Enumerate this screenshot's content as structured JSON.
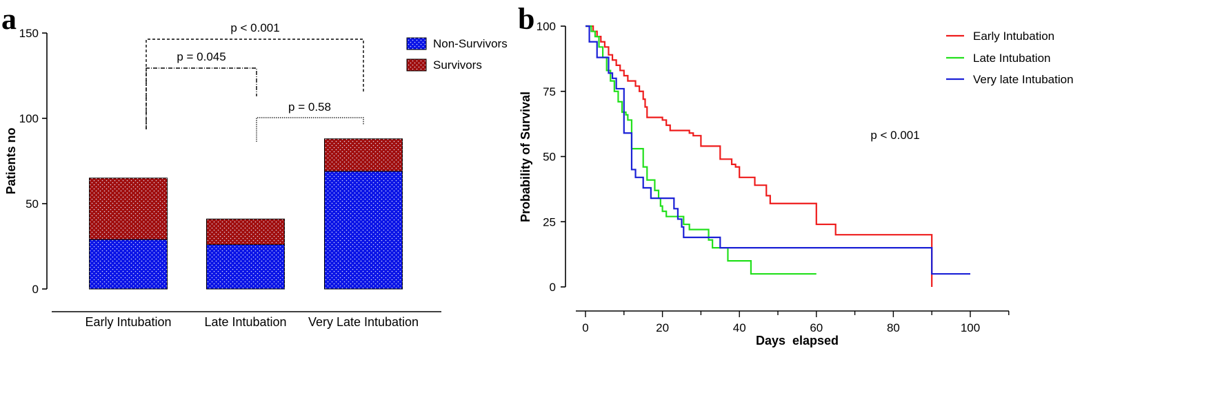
{
  "panels": {
    "a": "a",
    "b": "b"
  },
  "colors": {
    "non_survivors": "#0a14e6",
    "survivors": "#a00e0e",
    "early": "#ee1c1c",
    "late": "#22e01c",
    "very_late": "#1a20d6"
  },
  "chart_data": [
    {
      "type": "bar",
      "stacked": true,
      "title": "",
      "ylabel": "Patients no",
      "xlabel": "",
      "ylim": [
        0,
        150
      ],
      "yticks": [
        0,
        50,
        100,
        150
      ],
      "categories": [
        "Early Intubation",
        "Late Intubation",
        "Very Late Intubation"
      ],
      "series": [
        {
          "name": "Non-Survivors",
          "values": [
            29,
            26,
            69
          ]
        },
        {
          "name": "Survivors",
          "values": [
            36,
            15,
            19
          ]
        }
      ],
      "legend": "top-right",
      "annotations": [
        {
          "text": "p < 0.001",
          "from": "Early Intubation",
          "to": "Very Late Intubation"
        },
        {
          "text": "p = 0.045",
          "from": "Early Intubation",
          "to": "Late Intubation"
        },
        {
          "text": "p = 0.58",
          "from": "Late Intubation",
          "to": "Very Late Intubation"
        }
      ]
    },
    {
      "type": "line",
      "step": true,
      "title": "",
      "xlabel": "Days  elapsed",
      "ylabel": "Probability of Survival",
      "xlim": [
        0,
        110
      ],
      "ylim": [
        0,
        100
      ],
      "xticks": [
        0,
        20,
        40,
        60,
        80,
        100
      ],
      "yticks": [
        0,
        25,
        50,
        75,
        100
      ],
      "legend": "top-right",
      "annotation": "p < 0.001",
      "series": [
        {
          "name": "Early Intubation",
          "points": [
            [
              0,
              100
            ],
            [
              2,
              98
            ],
            [
              3,
              96
            ],
            [
              4,
              94
            ],
            [
              5,
              92
            ],
            [
              6,
              89
            ],
            [
              7,
              87
            ],
            [
              8,
              85
            ],
            [
              9,
              83
            ],
            [
              10,
              81
            ],
            [
              11,
              79
            ],
            [
              13,
              77
            ],
            [
              14,
              75
            ],
            [
              15,
              72
            ],
            [
              15.5,
              69
            ],
            [
              16,
              65
            ],
            [
              20,
              64
            ],
            [
              21,
              62
            ],
            [
              22,
              60
            ],
            [
              27,
              59
            ],
            [
              28,
              58
            ],
            [
              30,
              54
            ],
            [
              35,
              49
            ],
            [
              38,
              47
            ],
            [
              39,
              46
            ],
            [
              40,
              42
            ],
            [
              44,
              39
            ],
            [
              47,
              35
            ],
            [
              48,
              32
            ],
            [
              50,
              32
            ],
            [
              60,
              24
            ],
            [
              65,
              20
            ],
            [
              90,
              20
            ],
            [
              90,
              0
            ]
          ]
        },
        {
          "name": "Late Intubation",
          "points": [
            [
              0,
              100
            ],
            [
              1.5,
              98
            ],
            [
              2.5,
              96
            ],
            [
              3.5,
              92
            ],
            [
              4.5,
              88
            ],
            [
              5.5,
              83
            ],
            [
              6.5,
              79
            ],
            [
              7.5,
              75
            ],
            [
              8.5,
              71
            ],
            [
              9.5,
              67
            ],
            [
              10.5,
              66
            ],
            [
              11,
              64
            ],
            [
              12,
              53
            ],
            [
              15,
              46
            ],
            [
              16,
              41
            ],
            [
              18,
              37
            ],
            [
              19,
              34
            ],
            [
              19.5,
              31
            ],
            [
              20,
              29
            ],
            [
              21,
              27
            ],
            [
              22,
              27
            ],
            [
              23,
              27
            ],
            [
              24,
              27
            ],
            [
              25.5,
              24
            ],
            [
              27,
              22
            ],
            [
              32,
              18
            ],
            [
              33,
              15
            ],
            [
              35,
              15
            ],
            [
              37,
              10
            ],
            [
              43,
              5
            ],
            [
              60,
              5
            ]
          ]
        },
        {
          "name": "Very late Intubation",
          "points": [
            [
              0,
              100
            ],
            [
              1,
              94
            ],
            [
              3,
              88
            ],
            [
              6,
              82
            ],
            [
              7,
              80
            ],
            [
              8,
              76
            ],
            [
              10,
              59
            ],
            [
              12,
              45
            ],
            [
              13,
              42
            ],
            [
              15,
              38
            ],
            [
              17,
              34
            ],
            [
              23,
              30
            ],
            [
              24,
              26
            ],
            [
              25,
              23
            ],
            [
              25.5,
              19
            ],
            [
              35,
              15
            ],
            [
              90,
              15
            ],
            [
              90,
              5
            ],
            [
              100,
              5
            ]
          ]
        }
      ]
    }
  ]
}
